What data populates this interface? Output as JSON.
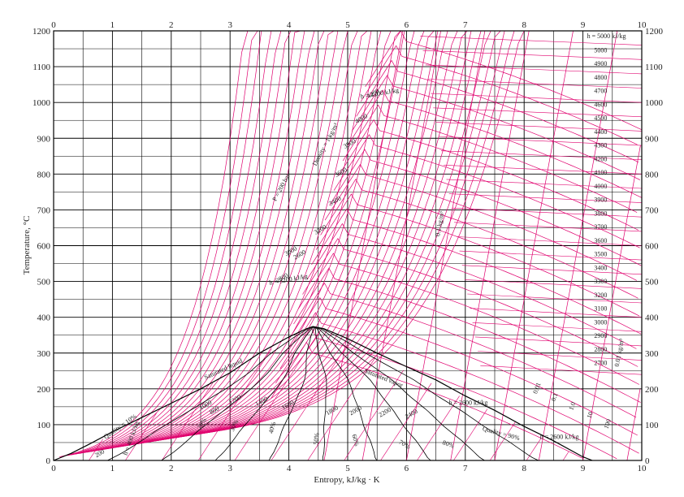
{
  "chart_data": {
    "type": "line",
    "xlabel": "Entropy, kJ/kg · K",
    "ylabel": "Temperature, °C",
    "xlim": [
      0,
      10
    ],
    "ylim": [
      0,
      1200
    ],
    "x_ticks": [
      "0",
      "1",
      "2",
      "3",
      "4",
      "5",
      "6",
      "7",
      "8",
      "9",
      "10"
    ],
    "y_ticks": [
      "0",
      "100",
      "200",
      "300",
      "400",
      "500",
      "600",
      "700",
      "800",
      "900",
      "1000",
      "1100",
      "1200"
    ],
    "grid": true,
    "saturation_dome": {
      "label_liquid": "Saturated liquid",
      "label_vapor": "Saturated vapor",
      "liquid": [
        [
          0,
          0
        ],
        [
          0.3,
          20
        ],
        [
          0.6,
          45
        ],
        [
          1.0,
          80
        ],
        [
          1.5,
          120
        ],
        [
          2.0,
          160
        ],
        [
          2.5,
          200
        ],
        [
          3.0,
          245
        ],
        [
          3.5,
          300
        ],
        [
          4.0,
          345
        ],
        [
          4.3,
          368
        ],
        [
          4.41,
          374
        ]
      ],
      "vapor": [
        [
          4.41,
          374
        ],
        [
          4.6,
          368
        ],
        [
          5.0,
          340
        ],
        [
          5.5,
          300
        ],
        [
          6.0,
          262
        ],
        [
          6.5,
          225
        ],
        [
          7.0,
          180
        ],
        [
          7.5,
          140
        ],
        [
          8.0,
          95
        ],
        [
          8.5,
          55
        ],
        [
          9.0,
          10
        ],
        [
          9.16,
          0
        ]
      ]
    },
    "quality_lines": {
      "labels": [
        "Quality = 10%",
        "20%",
        "30%",
        "40%",
        "50%",
        "60%",
        "70%",
        "80%",
        "Quality = 90%"
      ],
      "values": [
        0.1,
        0.2,
        0.3,
        0.4,
        0.5,
        0.6,
        0.7,
        0.8,
        0.9
      ]
    },
    "pressure_labels": [
      "P = 200 bar",
      "Density = 1 kg/m³",
      "0.1 kg/m³",
      "0.01 kg/m³"
    ],
    "enthalpy_labels": [
      "h = 5000 kJ/kg",
      "h = 4200 kJ/kg",
      "h = 3200 kJ/kg",
      "h = 2600 kJ/kg",
      "h = 2600 kJ/kg",
      "h = 400 kJ/kg"
    ],
    "enthalpy_right_column": [
      "5000",
      "4900",
      "4800",
      "4700",
      "4600",
      "4500",
      "4400",
      "4300",
      "4200",
      "4100",
      "4000",
      "3900",
      "3800",
      "3700",
      "3600",
      "3500",
      "3400",
      "3300",
      "3200",
      "3100",
      "3000",
      "2900",
      "2800",
      "2700"
    ],
    "enthalpy_dome_labels": [
      "200",
      "800",
      "1000",
      "1200",
      "1400",
      "1600",
      "1800",
      "2000",
      "2200",
      "2400",
      "2600",
      "2800",
      "3000",
      "3200",
      "3400",
      "3600",
      "3800",
      "4000",
      "4200"
    ],
    "specific_volume_labels": [
      "0.01",
      "0.1",
      "1.0",
      "10",
      "100"
    ],
    "colors": {
      "magenta": "#e0006e",
      "grid": "#000000",
      "dome": "#000000"
    }
  }
}
